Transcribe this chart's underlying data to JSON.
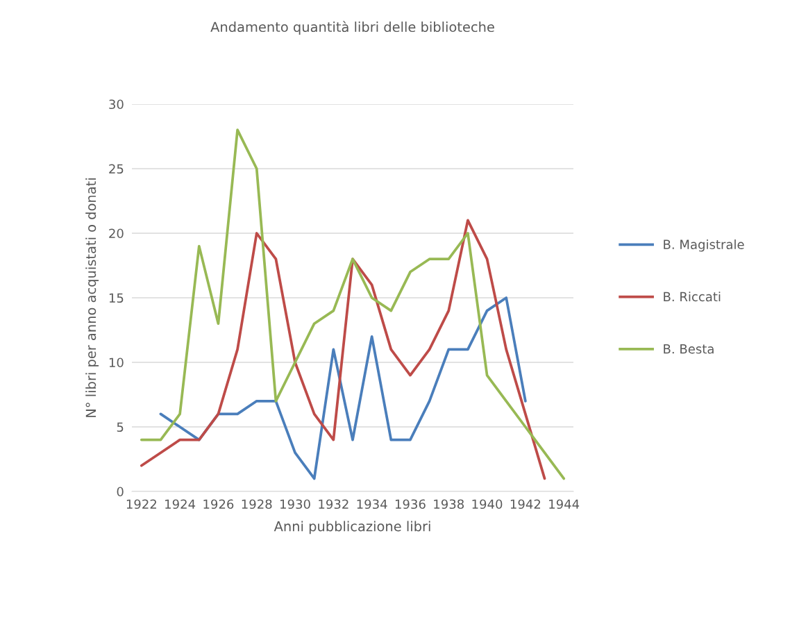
{
  "chart_data": {
    "type": "line",
    "title": "Andamento quantità libri delle biblioteche",
    "xlabel": "Anni pubblicazione libri",
    "ylabel": "N° libri per anno acquistati o donati",
    "categories": [
      "1922",
      null,
      "1924",
      null,
      "1926",
      null,
      "1928",
      null,
      "1930",
      null,
      "1932",
      null,
      "1934",
      null,
      "1936",
      null,
      "1938",
      null,
      "1940",
      null,
      "1942",
      null,
      "1944"
    ],
    "series": [
      {
        "name": "B. Magistrale",
        "color": "#4a7ebb",
        "values": [
          null,
          6,
          5,
          4,
          6,
          6,
          7,
          7,
          3,
          1,
          11,
          4,
          12,
          4,
          4,
          7,
          11,
          11,
          14,
          15,
          7,
          null,
          null
        ]
      },
      {
        "name": "B. Riccati",
        "color": "#be4b48",
        "values": [
          2,
          3,
          4,
          4,
          6,
          11,
          20,
          18,
          10,
          6,
          4,
          18,
          16,
          11,
          9,
          11,
          14,
          21,
          18,
          11,
          6,
          1,
          null
        ]
      },
      {
        "name": "B. Besta",
        "color": "#98b954",
        "values": [
          4,
          4,
          6,
          19,
          13,
          28,
          25,
          7,
          10,
          13,
          14,
          18,
          15,
          14,
          17,
          18,
          18,
          20,
          9,
          7,
          5,
          3,
          1
        ]
      }
    ],
    "ylim": [
      0,
      30
    ],
    "yticks": [
      0,
      5,
      10,
      15,
      20,
      25,
      30
    ],
    "grid": "y",
    "legend": "right",
    "marker": "none",
    "line_style": "solid"
  }
}
